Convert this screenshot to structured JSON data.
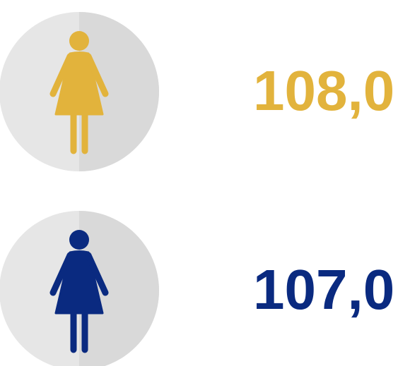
{
  "items": [
    {
      "label": "108,0",
      "color": "#e2b33c"
    },
    {
      "label": "107,0",
      "color": "#0a2a80"
    }
  ]
}
